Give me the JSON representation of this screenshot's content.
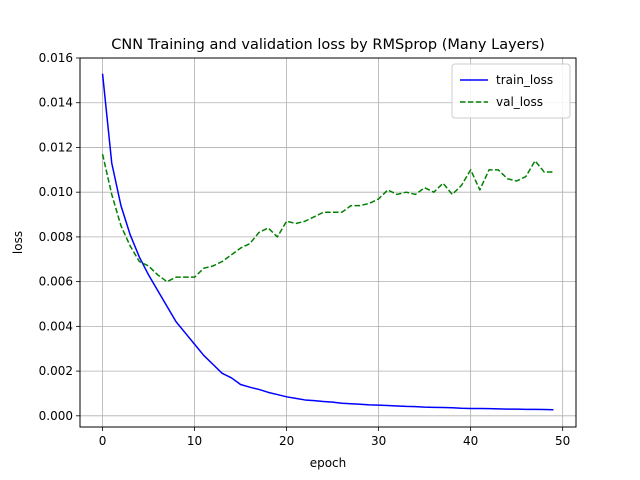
{
  "chart_data": {
    "type": "line",
    "title": "CNN Training and validation loss by RMSprop (Many Layers)",
    "xlabel": "epoch",
    "ylabel": "loss",
    "xlim": [
      -2.45,
      51.45
    ],
    "ylim": [
      -0.0005,
      0.016
    ],
    "xticks": [
      0,
      10,
      20,
      30,
      40,
      50
    ],
    "yticks": [
      0.0,
      0.002,
      0.004,
      0.006,
      0.008,
      0.01,
      0.012,
      0.014,
      0.016
    ],
    "ytick_format": "0.000",
    "grid": true,
    "legend_placement": "top-right",
    "x": [
      0,
      1,
      2,
      3,
      4,
      5,
      6,
      7,
      8,
      9,
      10,
      11,
      12,
      13,
      14,
      15,
      16,
      17,
      18,
      19,
      20,
      21,
      22,
      23,
      24,
      25,
      26,
      27,
      28,
      29,
      30,
      31,
      32,
      33,
      34,
      35,
      36,
      37,
      38,
      39,
      40,
      41,
      42,
      43,
      44,
      45,
      46,
      47,
      48,
      49
    ],
    "series": [
      {
        "name": "train_loss",
        "color": "#0000ff",
        "style": "solid",
        "values": [
          0.0153,
          0.0113,
          0.0094,
          0.0081,
          0.0071,
          0.0063,
          0.0056,
          0.0049,
          0.0042,
          0.0037,
          0.0032,
          0.0027,
          0.0023,
          0.0019,
          0.0017,
          0.0014,
          0.00128,
          0.00118,
          0.00105,
          0.00095,
          0.00085,
          0.00078,
          0.00071,
          0.00068,
          0.00064,
          0.00061,
          0.00056,
          0.00054,
          0.00052,
          0.00049,
          0.00048,
          0.00046,
          0.00044,
          0.00042,
          0.00041,
          0.00039,
          0.00038,
          0.00037,
          0.00036,
          0.00034,
          0.00033,
          0.00033,
          0.00032,
          0.00031,
          0.0003,
          0.0003,
          0.00029,
          0.00029,
          0.00028,
          0.00027
        ]
      },
      {
        "name": "val_loss",
        "color": "#008000",
        "style": "dashed",
        "values": [
          0.0117,
          0.0099,
          0.0085,
          0.0076,
          0.0069,
          0.0067,
          0.0063,
          0.006,
          0.0062,
          0.0062,
          0.0062,
          0.0066,
          0.0067,
          0.0069,
          0.0072,
          0.0075,
          0.0077,
          0.0082,
          0.0084,
          0.008,
          0.0087,
          0.0086,
          0.0087,
          0.0089,
          0.0091,
          0.0091,
          0.0091,
          0.0094,
          0.0094,
          0.0095,
          0.0097,
          0.0101,
          0.0099,
          0.01,
          0.0099,
          0.0102,
          0.01,
          0.0104,
          0.0099,
          0.0103,
          0.011,
          0.0101,
          0.011,
          0.011,
          0.0106,
          0.0105,
          0.0107,
          0.0114,
          0.0109,
          0.0109
        ]
      }
    ]
  }
}
